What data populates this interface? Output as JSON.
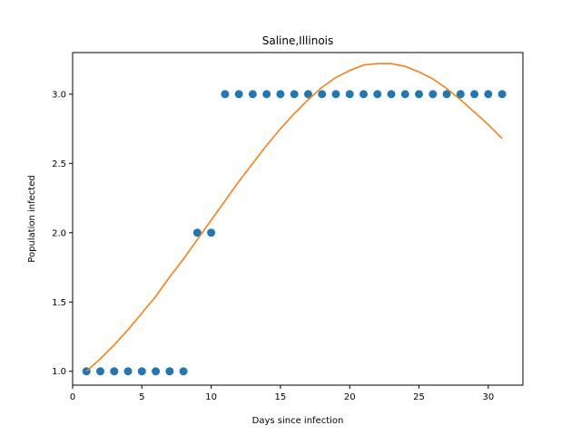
{
  "chart_data": {
    "type": "scatter",
    "title": "Saline,Illinois",
    "xlabel": "Days since infection",
    "ylabel": "Population infected",
    "xlim": [
      0,
      32.5
    ],
    "ylim": [
      0.9,
      3.3
    ],
    "xticks": [
      0,
      5,
      10,
      15,
      20,
      25,
      30
    ],
    "xtick_labels": [
      "0",
      "5",
      "10",
      "15",
      "20",
      "25",
      "30"
    ],
    "yticks": [
      1.0,
      1.5,
      2.0,
      2.5,
      3.0
    ],
    "ytick_labels": [
      "1.0",
      "1.5",
      "2.0",
      "2.5",
      "3.0"
    ],
    "grid": false,
    "legend": "none",
    "series": [
      {
        "kind": "scatter",
        "color": "#1f77b4",
        "x": [
          1,
          2,
          3,
          4,
          5,
          6,
          7,
          8,
          9,
          10,
          11,
          12,
          13,
          14,
          15,
          16,
          17,
          18,
          19,
          20,
          21,
          22,
          23,
          24,
          25,
          26,
          27,
          28,
          29,
          30,
          31
        ],
        "y": [
          1,
          1,
          1,
          1,
          1,
          1,
          1,
          1,
          2,
          2,
          3,
          3,
          3,
          3,
          3,
          3,
          3,
          3,
          3,
          3,
          3,
          3,
          3,
          3,
          3,
          3,
          3,
          3,
          3,
          3,
          3
        ]
      },
      {
        "kind": "line",
        "color": "#ff7f0e",
        "x": [
          1,
          2,
          3,
          4,
          5,
          6,
          7,
          8,
          9,
          10,
          11,
          12,
          13,
          14,
          15,
          16,
          17,
          18,
          19,
          20,
          21,
          22,
          23,
          24,
          25,
          26,
          27,
          28,
          29,
          30,
          31
        ],
        "y": [
          1.0,
          1.09,
          1.19,
          1.3,
          1.42,
          1.54,
          1.68,
          1.81,
          1.95,
          2.09,
          2.23,
          2.37,
          2.5,
          2.63,
          2.75,
          2.86,
          2.96,
          3.05,
          3.12,
          3.17,
          3.21,
          3.22,
          3.22,
          3.2,
          3.16,
          3.11,
          3.04,
          2.96,
          2.87,
          2.78,
          2.68
        ]
      }
    ]
  }
}
